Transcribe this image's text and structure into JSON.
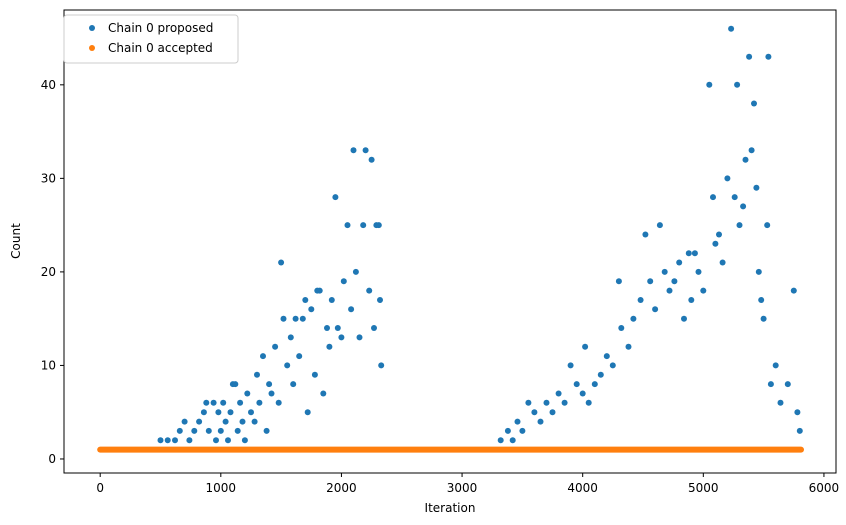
{
  "chart_data": {
    "type": "scatter",
    "title": "",
    "xlabel": "Iteration",
    "ylabel": "Count",
    "xlim": [
      -300,
      6100
    ],
    "ylim": [
      -1.5,
      48
    ],
    "xticks": [
      0,
      1000,
      2000,
      3000,
      4000,
      5000,
      6000
    ],
    "yticks": [
      0,
      10,
      20,
      30,
      40
    ],
    "xtick_labels": [
      "0",
      "1000",
      "2000",
      "3000",
      "4000",
      "5000",
      "6000"
    ],
    "ytick_labels": [
      "0",
      "10",
      "20",
      "30",
      "40"
    ],
    "grid": false,
    "legend_position": "upper-left",
    "series": [
      {
        "name": "Chain 0 proposed",
        "color": "#1f77b4",
        "points": [
          [
            500,
            2
          ],
          [
            560,
            2
          ],
          [
            620,
            2
          ],
          [
            660,
            3
          ],
          [
            700,
            4
          ],
          [
            740,
            2
          ],
          [
            780,
            3
          ],
          [
            820,
            4
          ],
          [
            860,
            5
          ],
          [
            880,
            6
          ],
          [
            900,
            3
          ],
          [
            940,
            6
          ],
          [
            960,
            2
          ],
          [
            980,
            5
          ],
          [
            1000,
            3
          ],
          [
            1020,
            6
          ],
          [
            1040,
            4
          ],
          [
            1060,
            2
          ],
          [
            1080,
            5
          ],
          [
            1100,
            8
          ],
          [
            1120,
            8
          ],
          [
            1140,
            3
          ],
          [
            1160,
            6
          ],
          [
            1180,
            4
          ],
          [
            1200,
            2
          ],
          [
            1220,
            7
          ],
          [
            1250,
            5
          ],
          [
            1280,
            4
          ],
          [
            1300,
            9
          ],
          [
            1320,
            6
          ],
          [
            1350,
            11
          ],
          [
            1380,
            3
          ],
          [
            1400,
            8
          ],
          [
            1420,
            7
          ],
          [
            1450,
            12
          ],
          [
            1480,
            6
          ],
          [
            1500,
            21
          ],
          [
            1520,
            15
          ],
          [
            1550,
            10
          ],
          [
            1580,
            13
          ],
          [
            1600,
            8
          ],
          [
            1620,
            15
          ],
          [
            1650,
            11
          ],
          [
            1680,
            15
          ],
          [
            1700,
            17
          ],
          [
            1720,
            5
          ],
          [
            1750,
            16
          ],
          [
            1780,
            9
          ],
          [
            1800,
            18
          ],
          [
            1820,
            18
          ],
          [
            1850,
            7
          ],
          [
            1880,
            14
          ],
          [
            1900,
            12
          ],
          [
            1920,
            17
          ],
          [
            1950,
            28
          ],
          [
            1970,
            14
          ],
          [
            2000,
            13
          ],
          [
            2020,
            19
          ],
          [
            2050,
            25
          ],
          [
            2080,
            16
          ],
          [
            2100,
            33
          ],
          [
            2120,
            20
          ],
          [
            2150,
            13
          ],
          [
            2180,
            25
          ],
          [
            2200,
            33
          ],
          [
            2230,
            18
          ],
          [
            2250,
            32
          ],
          [
            2270,
            14
          ],
          [
            2290,
            25
          ],
          [
            2310,
            25
          ],
          [
            2320,
            17
          ],
          [
            2330,
            10
          ],
          [
            3320,
            2
          ],
          [
            3380,
            3
          ],
          [
            3420,
            2
          ],
          [
            3460,
            4
          ],
          [
            3500,
            3
          ],
          [
            3550,
            6
          ],
          [
            3600,
            5
          ],
          [
            3650,
            4
          ],
          [
            3700,
            6
          ],
          [
            3750,
            5
          ],
          [
            3800,
            7
          ],
          [
            3850,
            6
          ],
          [
            3900,
            10
          ],
          [
            3950,
            8
          ],
          [
            4000,
            7
          ],
          [
            4020,
            12
          ],
          [
            4050,
            6
          ],
          [
            4100,
            8
          ],
          [
            4150,
            9
          ],
          [
            4200,
            11
          ],
          [
            4250,
            10
          ],
          [
            4300,
            19
          ],
          [
            4320,
            14
          ],
          [
            4380,
            12
          ],
          [
            4420,
            15
          ],
          [
            4480,
            17
          ],
          [
            4520,
            24
          ],
          [
            4560,
            19
          ],
          [
            4600,
            16
          ],
          [
            4640,
            25
          ],
          [
            4680,
            20
          ],
          [
            4720,
            18
          ],
          [
            4760,
            19
          ],
          [
            4800,
            21
          ],
          [
            4840,
            15
          ],
          [
            4880,
            22
          ],
          [
            4900,
            17
          ],
          [
            4930,
            22
          ],
          [
            4960,
            20
          ],
          [
            5000,
            18
          ],
          [
            5050,
            40
          ],
          [
            5080,
            28
          ],
          [
            5100,
            23
          ],
          [
            5130,
            24
          ],
          [
            5160,
            21
          ],
          [
            5200,
            30
          ],
          [
            5230,
            46
          ],
          [
            5260,
            28
          ],
          [
            5280,
            40
          ],
          [
            5300,
            25
          ],
          [
            5330,
            27
          ],
          [
            5350,
            32
          ],
          [
            5380,
            43
          ],
          [
            5400,
            33
          ],
          [
            5420,
            38
          ],
          [
            5440,
            29
          ],
          [
            5460,
            20
          ],
          [
            5480,
            17
          ],
          [
            5500,
            15
          ],
          [
            5530,
            25
          ],
          [
            5540,
            43
          ],
          [
            5560,
            8
          ],
          [
            5600,
            10
          ],
          [
            5640,
            6
          ],
          [
            5700,
            8
          ],
          [
            5750,
            18
          ],
          [
            5780,
            5
          ],
          [
            5800,
            3
          ]
        ]
      },
      {
        "name": "Chain 0 accepted",
        "color": "#ff7f0e",
        "points": [
          [
            0,
            1
          ],
          [
            5810,
            1
          ]
        ]
      }
    ]
  }
}
